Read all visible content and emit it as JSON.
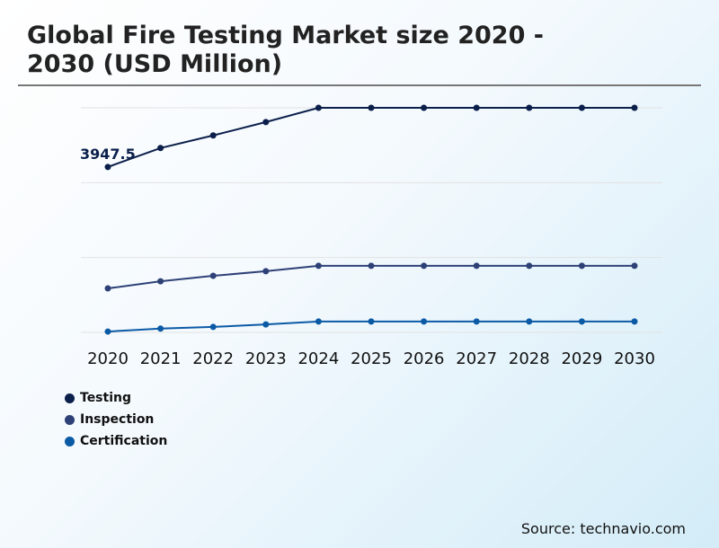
{
  "chart_data": {
    "type": "line",
    "title": "Global Fire Testing Market size 2020 - 2030 (USD Million)",
    "categories": [
      "2020",
      "2021",
      "2022",
      "2023",
      "2024",
      "2025",
      "2026",
      "2027",
      "2028",
      "2029",
      "2030"
    ],
    "series": [
      {
        "name": "Testing",
        "color": "#0b1f4b",
        "values": [
          3947.5,
          4400,
          4700,
          5020,
          5360,
          5360,
          5360,
          5360,
          5360,
          5360,
          5360
        ]
      },
      {
        "name": "Inspection",
        "color": "#2e4177",
        "values": [
          1050,
          1220,
          1350,
          1460,
          1590,
          1590,
          1590,
          1590,
          1590,
          1590,
          1590
        ]
      },
      {
        "name": "Certification",
        "color": "#0b5aa6",
        "values": [
          20,
          90,
          130,
          190,
          260,
          260,
          260,
          260,
          260,
          260,
          260
        ]
      }
    ],
    "annotations": [
      {
        "series": "Testing",
        "category": "2020",
        "text": "3947.5"
      }
    ],
    "ylim": [
      0,
      5360
    ],
    "grid": true,
    "legend_placement": "bottom-left"
  },
  "source": "Source: technavio.com"
}
